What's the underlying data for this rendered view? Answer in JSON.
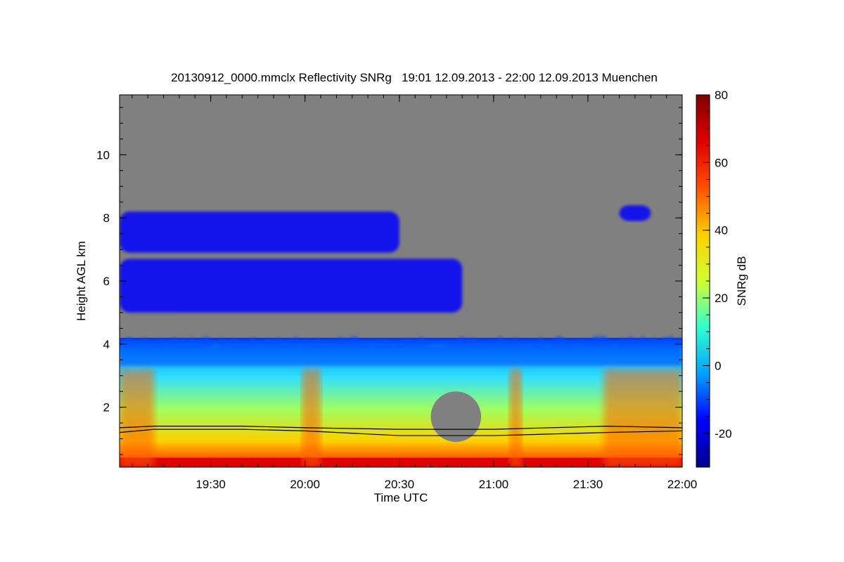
{
  "chart_data": {
    "type": "heatmap",
    "title": "20130912_0000.mmclx Reflectivity SNRg   19:01 12.09.2013 - 22:00 12.09.2013 Muenchen",
    "xlabel": "Time UTC",
    "ylabel": "Height AGL km",
    "colorbar_label": "SNRg dB",
    "x_range_utc": [
      "19:01",
      "22:00"
    ],
    "y_range_km": [
      0.1,
      11.9
    ],
    "x_tick_labels": [
      "19:30",
      "20:00",
      "20:30",
      "21:00",
      "21:30",
      "22:00"
    ],
    "y_tick_labels": [
      "2",
      "4",
      "6",
      "8",
      "10"
    ],
    "colorbar_range_db": [
      -30,
      80
    ],
    "colorbar_tick_labels": [
      "-20",
      "0",
      "20",
      "40",
      "60",
      "80"
    ],
    "colormap": [
      "#00008f",
      "#0000ff",
      "#00a0ff",
      "#30ffd0",
      "#d0ff30",
      "#ffd000",
      "#ff5000",
      "#e00000",
      "#800000"
    ],
    "no_signal_color": "#808080",
    "echo_regions": [
      {
        "name": "boundary-layer-echo",
        "time_utc": [
          "19:01",
          "22:00"
        ],
        "top_km_approx": 4.2,
        "snr_db_range": [
          -15,
          80
        ]
      },
      {
        "name": "surface-strong-echo",
        "time_utc": [
          "19:01",
          "22:00"
        ],
        "top_km_approx": 0.4,
        "snr_db_approx": 70
      },
      {
        "name": "mid-level-cloud",
        "time_utc": [
          "19:01",
          "20:50"
        ],
        "height_km": [
          5.0,
          6.7
        ],
        "snr_db_approx": -18
      },
      {
        "name": "upper-cloud",
        "time_utc": [
          "19:01",
          "20:30"
        ],
        "height_km": [
          6.9,
          8.2
        ],
        "snr_db_approx": -18
      },
      {
        "name": "upper-cloud-late",
        "time_utc": [
          "21:40",
          "21:50"
        ],
        "height_km": [
          7.9,
          8.4
        ],
        "snr_db_approx": -18
      },
      {
        "name": "clear-pocket",
        "time_utc": [
          "20:40",
          "20:56"
        ],
        "height_km": [
          0.9,
          2.5
        ],
        "snr_db_approx": null
      }
    ],
    "boundary_line_km": [
      {
        "time_utc": "19:01",
        "upper": 1.35,
        "lower": 1.2
      },
      {
        "time_utc": "19:12",
        "upper": 1.4,
        "lower": 1.3
      },
      {
        "time_utc": "19:40",
        "upper": 1.4,
        "lower": 1.3
      },
      {
        "time_utc": "20:00",
        "upper": 1.35,
        "lower": 1.25
      },
      {
        "time_utc": "20:30",
        "upper": 1.3,
        "lower": 1.1
      },
      {
        "time_utc": "21:00",
        "upper": 1.3,
        "lower": 1.1
      },
      {
        "time_utc": "21:36",
        "upper": 1.4,
        "lower": 1.2
      },
      {
        "time_utc": "22:00",
        "upper": 1.35,
        "lower": 1.25
      }
    ],
    "grid": false
  }
}
